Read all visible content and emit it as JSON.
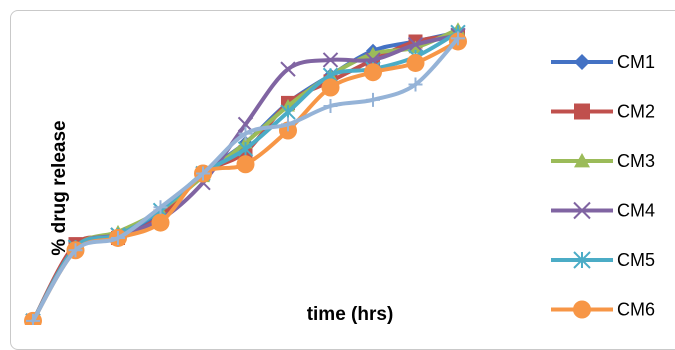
{
  "chart_data": {
    "type": "line",
    "title": "",
    "xlabel": "time (hrs)",
    "ylabel": "% drug release",
    "x": [
      0,
      1,
      2,
      3,
      4,
      5,
      6,
      7,
      8,
      9,
      10
    ],
    "ylim": [
      0,
      100
    ],
    "grid": false,
    "legend_position": "right",
    "series": [
      {
        "name": "CM1",
        "color": "#4472C4",
        "marker": "diamond",
        "values": [
          2,
          26,
          30,
          37,
          50,
          60,
          73,
          82,
          90,
          93,
          96
        ]
      },
      {
        "name": "CM2",
        "color": "#C0504D",
        "marker": "square",
        "values": [
          2,
          27,
          29,
          36,
          50,
          57,
          73,
          80,
          87,
          93,
          95
        ]
      },
      {
        "name": "CM3",
        "color": "#9BBB59",
        "marker": "triangle",
        "values": [
          2,
          26,
          31,
          38,
          49,
          60,
          72,
          82,
          89,
          91,
          97
        ]
      },
      {
        "name": "CM4",
        "color": "#8064A2",
        "marker": "x",
        "values": [
          2,
          26,
          30,
          35,
          47,
          66,
          84,
          87,
          87,
          92,
          95
        ]
      },
      {
        "name": "CM5",
        "color": "#4BACC6",
        "marker": "asterisk",
        "values": [
          2,
          26,
          30,
          38,
          50,
          58,
          70,
          82,
          84,
          88,
          96
        ]
      },
      {
        "name": "CM6",
        "color": "#F79646",
        "marker": "circle",
        "values": [
          2,
          25,
          29,
          34,
          50,
          53,
          64,
          78,
          83,
          86,
          93
        ]
      },
      {
        "name": "",
        "color": "#95B3D7",
        "marker": "plus",
        "values": [
          2,
          25,
          29,
          39,
          50,
          63,
          66,
          72,
          74,
          79,
          94
        ]
      }
    ]
  }
}
